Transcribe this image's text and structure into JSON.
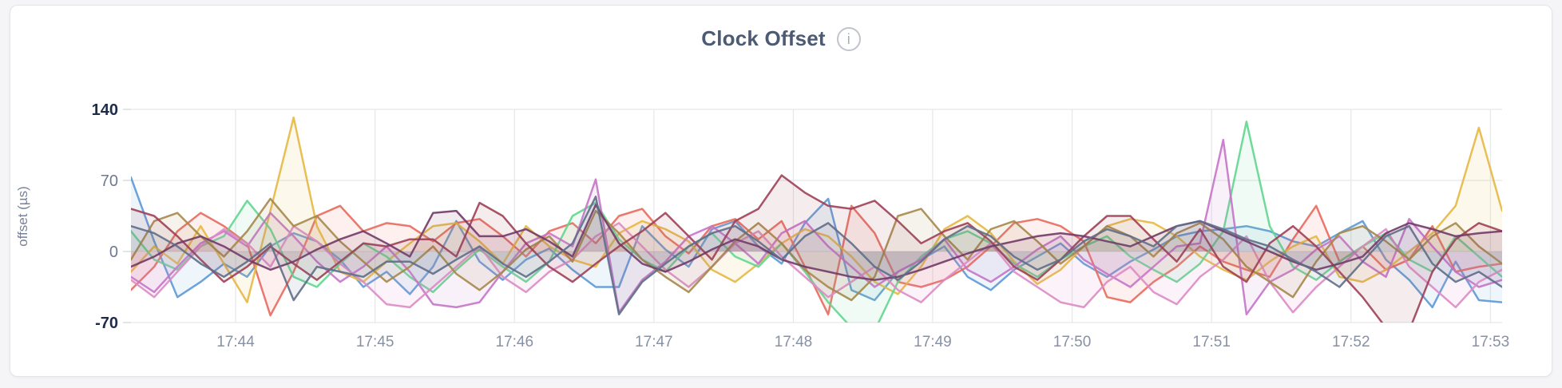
{
  "page": {
    "background": "#f5f5f7"
  },
  "card": {
    "background": "#ffffff",
    "border_color": "#e3e4e7"
  },
  "header": {
    "title": "Clock Offset",
    "info_glyph": "i"
  },
  "chart_data": {
    "type": "line",
    "title": "Clock Offset",
    "xlabel": "",
    "ylabel": "offset (µs)",
    "ylim": [
      -70,
      140
    ],
    "grid": true,
    "legend": "none",
    "x_start": "17:43:15",
    "x_end": "17:53:05",
    "point_interval_seconds": 10,
    "y_ticks": [
      {
        "label": "140",
        "value": 140,
        "emphasis": true
      },
      {
        "label": "70",
        "value": 70,
        "emphasis": false
      },
      {
        "label": "0",
        "value": 0,
        "emphasis": false
      },
      {
        "label": "-70",
        "value": -70,
        "emphasis": true
      }
    ],
    "x_ticks": [
      {
        "label": "17:44",
        "pos": 0.0763
      },
      {
        "label": "17:45",
        "pos": 0.178
      },
      {
        "label": "17:46",
        "pos": 0.2797
      },
      {
        "label": "17:47",
        "pos": 0.3814
      },
      {
        "label": "17:48",
        "pos": 0.4831
      },
      {
        "label": "17:49",
        "pos": 0.5847
      },
      {
        "label": "17:50",
        "pos": 0.6864
      },
      {
        "label": "17:51",
        "pos": 0.7881
      },
      {
        "label": "17:52",
        "pos": 0.8898
      },
      {
        "label": "17:53",
        "pos": 0.9915
      }
    ],
    "axis_colors": {
      "tick_emphasis": "#1f2c49",
      "tick_normal": "#6e7a90",
      "x_labels": "#8791a5",
      "grid": "#e7e8ea"
    },
    "series": [
      {
        "name": "blue",
        "color": "#5c99d6",
        "values": [
          73,
          10,
          -45,
          -30,
          -12,
          -25,
          5,
          18,
          10,
          -8,
          -35,
          -20,
          -42,
          -15,
          30,
          -10,
          -28,
          -8,
          3,
          -18,
          -35,
          -35,
          25,
          2,
          -15,
          22,
          30,
          5,
          -12,
          28,
          52,
          -38,
          -48,
          -20,
          -8,
          5,
          -25,
          -38,
          -18,
          -5,
          8,
          -12,
          -25,
          -10,
          2,
          15,
          20,
          22,
          25,
          20,
          10,
          5,
          18,
          30,
          -8,
          -28,
          -55,
          -10,
          -48,
          -50
        ]
      },
      {
        "name": "red",
        "color": "#e8695c",
        "values": [
          -38,
          -15,
          20,
          38,
          25,
          8,
          -63,
          -20,
          35,
          45,
          20,
          28,
          25,
          10,
          28,
          32,
          15,
          -5,
          20,
          28,
          8,
          35,
          42,
          15,
          -2,
          25,
          32,
          12,
          30,
          -15,
          -62,
          45,
          18,
          -30,
          -35,
          -28,
          -15,
          5,
          28,
          32,
          25,
          10,
          -45,
          -50,
          -30,
          -15,
          5,
          -10,
          -18,
          -25,
          12,
          45,
          -10,
          5,
          -18,
          -8,
          25,
          -20,
          -15,
          -12
        ]
      },
      {
        "name": "gold",
        "color": "#e6b843",
        "values": [
          -20,
          5,
          -12,
          25,
          -12,
          -50,
          40,
          132,
          25,
          -20,
          -30,
          -10,
          8,
          25,
          28,
          10,
          -12,
          25,
          5,
          -8,
          -15,
          18,
          30,
          22,
          10,
          -18,
          -30,
          -12,
          8,
          22,
          15,
          -5,
          -30,
          -42,
          -15,
          22,
          35,
          18,
          -10,
          -32,
          -18,
          5,
          25,
          32,
          28,
          15,
          -5,
          -18,
          -28,
          -10,
          5,
          15,
          -25,
          -30,
          -18,
          0,
          18,
          45,
          122,
          40
        ]
      },
      {
        "name": "green",
        "color": "#62d68f",
        "values": [
          20,
          -8,
          -18,
          5,
          15,
          50,
          22,
          -25,
          -35,
          -12,
          8,
          -5,
          -25,
          -40,
          -18,
          2,
          -15,
          -30,
          -10,
          35,
          48,
          12,
          -8,
          -20,
          5,
          18,
          -5,
          -15,
          8,
          -20,
          -50,
          -75,
          -78,
          -30,
          -5,
          12,
          20,
          8,
          -12,
          -25,
          -8,
          5,
          15,
          -5,
          -18,
          -30,
          -12,
          20,
          128,
          25,
          -15,
          -28,
          -10,
          5,
          18,
          -8,
          -20,
          15,
          -5,
          -25
        ]
      },
      {
        "name": "orchid",
        "color": "#c574c8",
        "values": [
          -25,
          -40,
          -15,
          8,
          20,
          5,
          38,
          15,
          -10,
          -30,
          -15,
          5,
          -20,
          -52,
          -55,
          -50,
          -20,
          8,
          18,
          5,
          71,
          -60,
          -28,
          -10,
          15,
          25,
          8,
          -12,
          18,
          30,
          5,
          -15,
          -35,
          -20,
          -8,
          12,
          -18,
          -30,
          -15,
          2,
          15,
          -8,
          -22,
          -35,
          -15,
          5,
          8,
          110,
          -62,
          -30,
          -18,
          2,
          15,
          -10,
          -25,
          32,
          5,
          -20,
          -35,
          -28
        ]
      },
      {
        "name": "pink",
        "color": "#db8cc4",
        "values": [
          -28,
          -45,
          -20,
          5,
          22,
          8,
          -15,
          25,
          10,
          -12,
          -30,
          -52,
          -55,
          -35,
          -15,
          5,
          -25,
          -40,
          -20,
          -8,
          15,
          28,
          5,
          -18,
          -35,
          -15,
          8,
          20,
          -5,
          -25,
          -45,
          -30,
          -15,
          -38,
          -50,
          -28,
          -10,
          8,
          -20,
          -35,
          -50,
          -55,
          -30,
          -15,
          -40,
          -52,
          -25,
          -8,
          15,
          -30,
          -60,
          -35,
          -15,
          5,
          22,
          -15,
          -35,
          -55,
          -30,
          -18
        ]
      },
      {
        "name": "khaki",
        "color": "#a5884b",
        "values": [
          -8,
          30,
          38,
          15,
          -5,
          20,
          52,
          25,
          35,
          10,
          -10,
          -30,
          -15,
          5,
          -22,
          -38,
          -20,
          2,
          15,
          -10,
          40,
          18,
          -8,
          -25,
          -40,
          -15,
          10,
          28,
          8,
          -18,
          -35,
          -48,
          -25,
          35,
          42,
          15,
          -8,
          22,
          30,
          10,
          -12,
          5,
          25,
          15,
          -5,
          18,
          28,
          12,
          -15,
          -30,
          -45,
          -10,
          18,
          25,
          10,
          -8,
          15,
          28,
          5,
          -12
        ]
      },
      {
        "name": "maroon",
        "color": "#9e4056",
        "values": [
          42,
          35,
          15,
          -8,
          -30,
          -15,
          5,
          -12,
          -28,
          -10,
          8,
          5,
          12,
          12,
          -5,
          48,
          35,
          8,
          -15,
          -30,
          -12,
          5,
          20,
          38,
          15,
          -8,
          30,
          42,
          75,
          58,
          45,
          42,
          50,
          30,
          8,
          20,
          28,
          10,
          -15,
          -28,
          -8,
          15,
          35,
          35,
          12,
          -10,
          22,
          -15,
          -30,
          8,
          25,
          5,
          -20,
          -45,
          -75,
          -78,
          -20,
          12,
          28,
          20
        ]
      },
      {
        "name": "plum",
        "color": "#713a67",
        "values": [
          -15,
          -5,
          8,
          15,
          5,
          -8,
          -18,
          -10,
          2,
          12,
          20,
          8,
          -5,
          38,
          40,
          15,
          15,
          22,
          10,
          -5,
          46,
          8,
          -12,
          -20,
          -10,
          2,
          12,
          5,
          -8,
          -15,
          -20,
          -25,
          -28,
          -25,
          -18,
          -10,
          -2,
          5,
          10,
          15,
          18,
          15,
          10,
          5,
          15,
          25,
          30,
          20,
          10,
          0,
          -10,
          -18,
          -12,
          -5,
          18,
          28,
          22,
          15,
          18,
          20
        ]
      },
      {
        "name": "slate",
        "color": "#5f6e87",
        "values": [
          25,
          18,
          5,
          -12,
          -25,
          -10,
          8,
          -48,
          -15,
          -20,
          -25,
          -10,
          -10,
          -22,
          -8,
          5,
          -12,
          -25,
          -10,
          8,
          54,
          -62,
          -30,
          -12,
          5,
          18,
          25,
          10,
          -8,
          15,
          28,
          8,
          -15,
          -28,
          -10,
          12,
          25,
          15,
          -5,
          -18,
          -8,
          10,
          22,
          15,
          5,
          25,
          30,
          22,
          12,
          5,
          -8,
          -20,
          -35,
          -10,
          15,
          25,
          -12,
          -30,
          -20,
          -35
        ]
      }
    ]
  }
}
